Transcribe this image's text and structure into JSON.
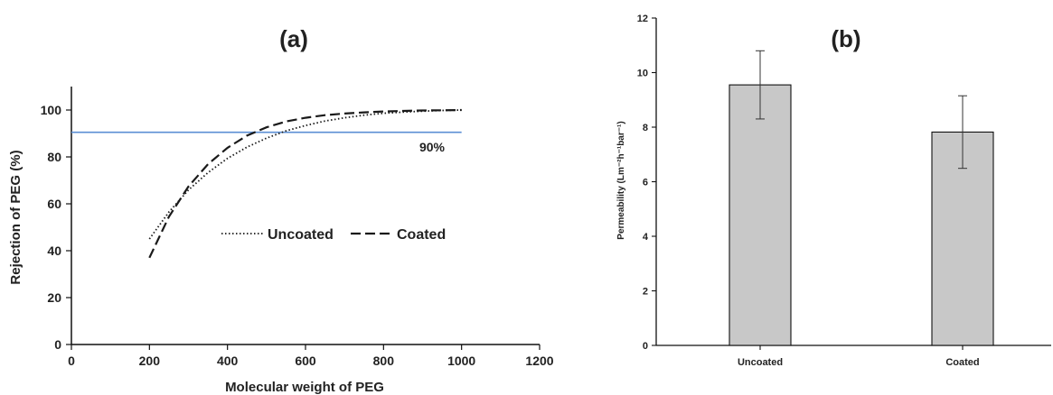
{
  "chart_data": [
    {
      "type": "line",
      "panel_label": "(a)",
      "xlabel": "Molecular weight of PEG",
      "ylabel": "Rejection of PEG (%)",
      "xlim": [
        0,
        1200
      ],
      "ylim": [
        0,
        110
      ],
      "xticks": [
        0,
        200,
        400,
        600,
        800,
        1000,
        1200
      ],
      "yticks": [
        0,
        20,
        40,
        60,
        80,
        100
      ],
      "series": [
        {
          "name": "Uncoated",
          "style": "dotted",
          "color": "#1a1a1a",
          "x": [
            200,
            250,
            300,
            350,
            400,
            450,
            500,
            550,
            600,
            650,
            700,
            750,
            800,
            850,
            900,
            950,
            1000
          ],
          "y": [
            45,
            56.5,
            65.9,
            73.3,
            79.4,
            84.2,
            88.0,
            91.1,
            93.4,
            95.3,
            96.7,
            97.8,
            98.6,
            99.1,
            99.5,
            99.8,
            100
          ]
        },
        {
          "name": "Coated",
          "style": "dashed",
          "color": "#1a1a1a",
          "x": [
            200,
            250,
            300,
            350,
            400,
            450,
            500,
            550,
            600,
            650,
            700,
            750,
            800,
            850,
            900,
            950,
            1000
          ],
          "y": [
            37,
            54.5,
            67.4,
            76.9,
            83.9,
            89.1,
            92.6,
            95.1,
            96.7,
            97.8,
            98.5,
            99.0,
            99.4,
            99.6,
            99.8,
            99.9,
            100
          ]
        }
      ],
      "reference_line": {
        "y": 90.5,
        "label": "90%",
        "color": "#5b8fd4"
      },
      "legend": "center"
    },
    {
      "type": "bar",
      "panel_label": "(b)",
      "categories": [
        "Uncoated",
        "Coated"
      ],
      "values": [
        9.55,
        7.82
      ],
      "errors": [
        1.25,
        1.33
      ],
      "bar_color": "#c8c8c8",
      "ylabel": "Permeability (Lm⁻²h⁻¹bar⁻¹)",
      "ylim": [
        0,
        12
      ],
      "yticks": [
        0,
        2,
        4,
        6,
        8,
        10,
        12
      ]
    }
  ]
}
